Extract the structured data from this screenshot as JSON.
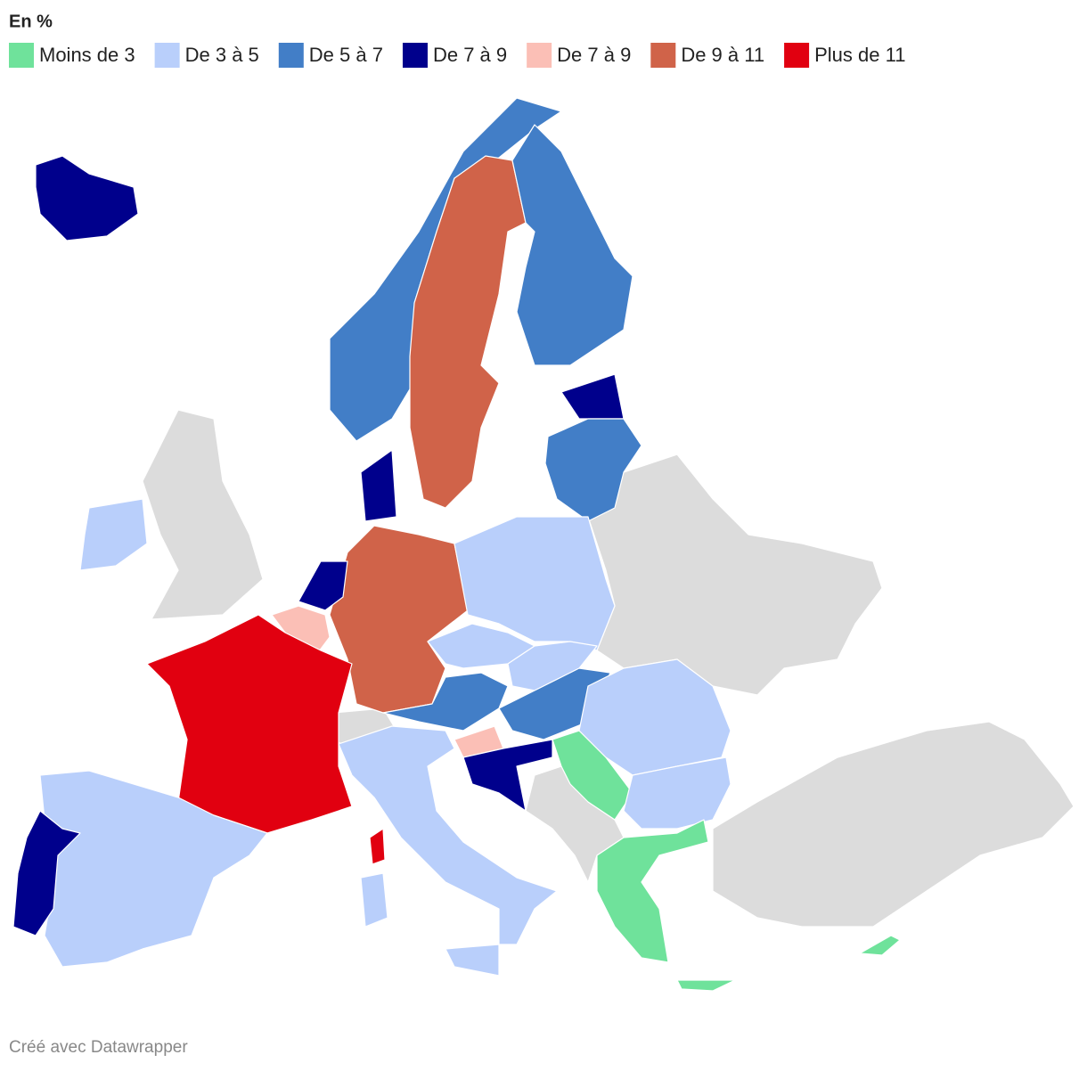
{
  "legend": {
    "title": "En %",
    "items": [
      {
        "label": "Moins de 3",
        "color": "#6fe29b"
      },
      {
        "label": "De 3 à 5",
        "color": "#b9cffb"
      },
      {
        "label": "De 5 à 7",
        "color": "#427ec7"
      },
      {
        "label": "De 7 à 9",
        "color": "#00008c"
      },
      {
        "label": "De 7 à 9",
        "color": "#fbbfb6"
      },
      {
        "label": "De 9 à 11",
        "color": "#d06349"
      },
      {
        "label": "Plus de 11",
        "color": "#e10010"
      }
    ]
  },
  "footer": "Créé avec Datawrapper"
}
